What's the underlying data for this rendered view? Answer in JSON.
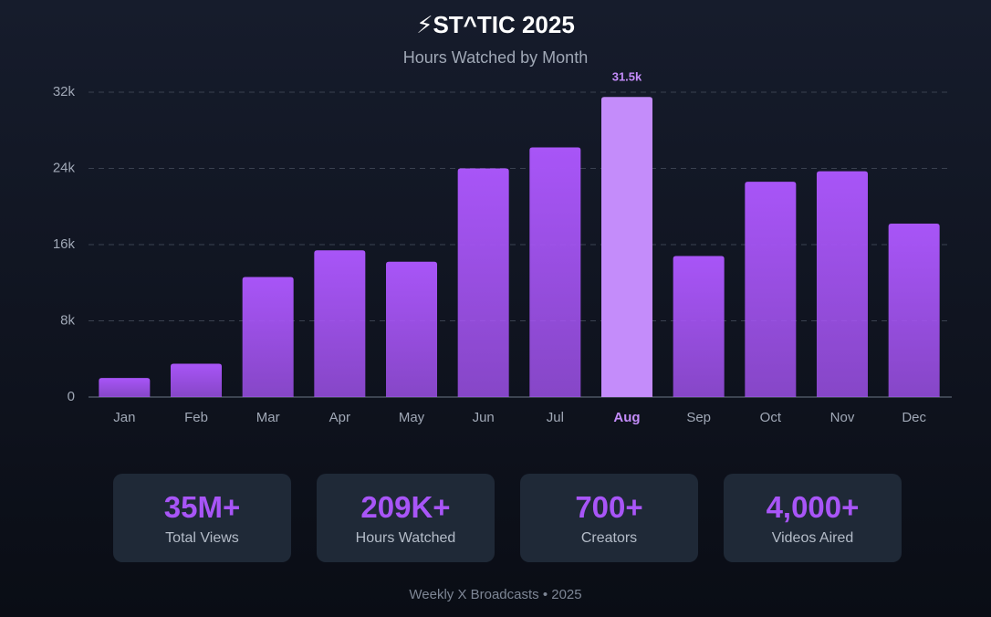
{
  "chart_data": {
    "type": "bar",
    "title": "⚡ST^TIC 2025",
    "subtitle": "Hours Watched by Month",
    "categories": [
      "Jan",
      "Feb",
      "Mar",
      "Apr",
      "May",
      "Jun",
      "Jul",
      "Aug",
      "Sep",
      "Oct",
      "Nov",
      "Dec"
    ],
    "values": [
      2000,
      3500,
      12600,
      15400,
      14200,
      24000,
      26200,
      31500,
      14800,
      22600,
      23700,
      18200
    ],
    "value_labels": [
      null,
      null,
      null,
      null,
      null,
      null,
      null,
      "31.5k",
      null,
      null,
      null,
      null
    ],
    "color": "#a855f7",
    "highlight_color": "#c48cfa",
    "ylim": [
      0,
      32000
    ],
    "yticks": [
      0,
      {
        "value": 8000,
        "label": "8k"
      },
      {
        "value": 16000,
        "label": "16k"
      },
      {
        "value": 24000,
        "label": "24k"
      },
      {
        "value": 32000,
        "label": "32k"
      }
    ],
    "grid": true
  },
  "stats": [
    {
      "value": "35M+",
      "label": "Total Views"
    },
    {
      "value": "209K+",
      "label": "Hours Watched"
    },
    {
      "value": "700+",
      "label": "Creators"
    },
    {
      "value": "4,000+",
      "label": "Videos Aired"
    }
  ],
  "footer": "Weekly X Broadcasts • 2025"
}
